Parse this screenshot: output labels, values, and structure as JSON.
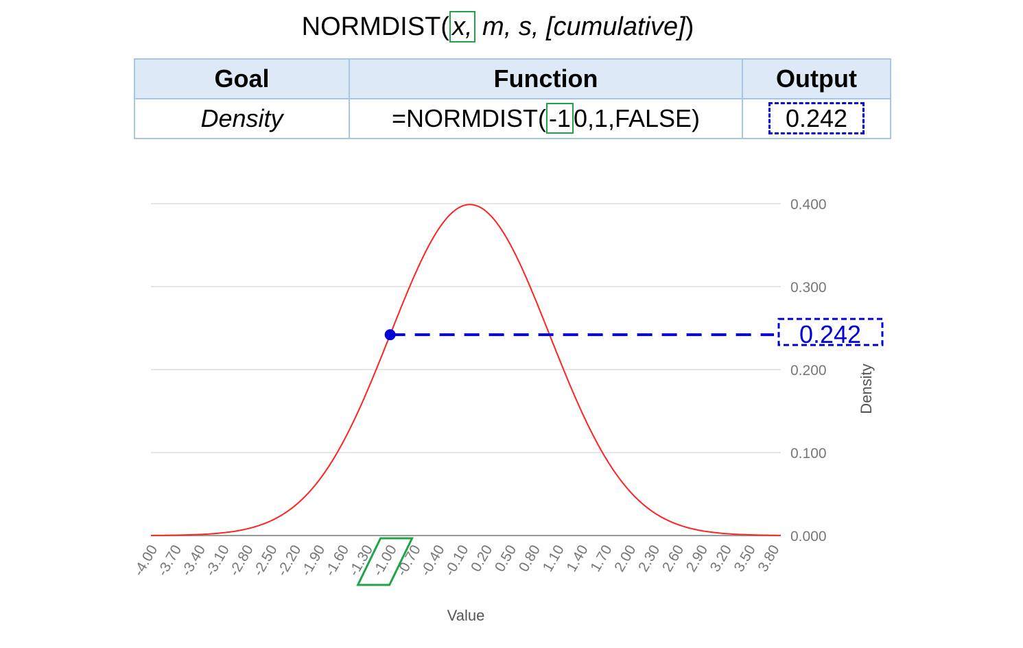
{
  "formula": {
    "name": "NORMDIST(",
    "arg_x": "x,",
    "arg_rest": " m, s, [cumulative]",
    "close": ")"
  },
  "table": {
    "headers": [
      "Goal",
      "Function",
      "Output"
    ],
    "row": {
      "goal": "Density",
      "fn_prefix": "=NORMDIST(",
      "fn_arg": "-1",
      "fn_suffix": "0,1,FALSE)",
      "output": "0.242"
    }
  },
  "chart_data": {
    "type": "line",
    "xlabel": "Value",
    "ylabel": "Density",
    "x_range": [
      -4.0,
      3.9
    ],
    "ylim": [
      0,
      0.4
    ],
    "yticks": [
      "0.400",
      "0.300",
      "0.200",
      "0.100",
      "0.000"
    ],
    "xticks": [
      "-4.00",
      "-3.70",
      "-3.40",
      "-3.10",
      "-2.80",
      "-2.50",
      "-2.20",
      "-1.90",
      "-1.60",
      "-1.30",
      "-1.00",
      "-0.70",
      "-0.40",
      "-0.10",
      "0.20",
      "0.50",
      "0.80",
      "1.10",
      "1.40",
      "1.70",
      "2.00",
      "2.30",
      "2.60",
      "2.90",
      "3.20",
      "3.50",
      "3.80"
    ],
    "series": [
      {
        "curve": "normal-pdf",
        "mean": 0,
        "sd": 1,
        "color": "#ff2222"
      }
    ],
    "highlight": {
      "x": -1.0,
      "y": 0.242,
      "label": "0.242",
      "color": "#0000d6",
      "tick_box_color": "#1fa547"
    },
    "grid": true
  }
}
